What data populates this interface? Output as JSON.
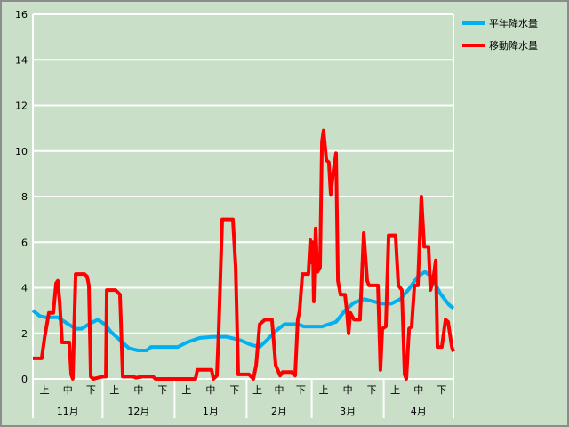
{
  "chart_data": {
    "type": "line",
    "title": "",
    "xlabel": "",
    "ylabel": "",
    "ylim": [
      0,
      16
    ],
    "yticks": [
      0,
      2,
      4,
      6,
      8,
      10,
      12,
      14,
      16
    ],
    "grid": true,
    "legend_position": "top-right",
    "x_range_days": [
      0,
      181
    ],
    "months": [
      {
        "label": "11月",
        "days": 30
      },
      {
        "label": "12月",
        "days": 31
      },
      {
        "label": "1月",
        "days": 31
      },
      {
        "label": "2月",
        "days": 28
      },
      {
        "label": "3月",
        "days": 31
      },
      {
        "label": "4月",
        "days": 30
      }
    ],
    "dekads": [
      "上",
      "中",
      "下"
    ],
    "series": [
      {
        "name": "平年降水量",
        "color": "#00b0f0",
        "points": [
          [
            0,
            3.0
          ],
          [
            3.1,
            2.75
          ],
          [
            5.7,
            2.7
          ],
          [
            10.7,
            2.7
          ],
          [
            14.5,
            2.45
          ],
          [
            18.4,
            2.2
          ],
          [
            21.0,
            2.2
          ],
          [
            24.1,
            2.4
          ],
          [
            27.9,
            2.6
          ],
          [
            31.0,
            2.4
          ],
          [
            33.7,
            2.05
          ],
          [
            37.5,
            1.7
          ],
          [
            41.3,
            1.35
          ],
          [
            45.2,
            1.25
          ],
          [
            49.0,
            1.25
          ],
          [
            50.9,
            1.4
          ],
          [
            62.4,
            1.4
          ],
          [
            66.2,
            1.6
          ],
          [
            71.9,
            1.8
          ],
          [
            77.7,
            1.85
          ],
          [
            83.4,
            1.85
          ],
          [
            89.2,
            1.7
          ],
          [
            93.8,
            1.5
          ],
          [
            97.6,
            1.4
          ],
          [
            100.7,
            1.7
          ],
          [
            104.5,
            2.1
          ],
          [
            108.3,
            2.4
          ],
          [
            114.0,
            2.4
          ],
          [
            116.7,
            2.3
          ],
          [
            124.4,
            2.3
          ],
          [
            127.4,
            2.4
          ],
          [
            130.5,
            2.5
          ],
          [
            134.3,
            3.0
          ],
          [
            138.2,
            3.35
          ],
          [
            142.7,
            3.5
          ],
          [
            146.6,
            3.4
          ],
          [
            150.4,
            3.3
          ],
          [
            154.2,
            3.3
          ],
          [
            158.1,
            3.5
          ],
          [
            161.9,
            3.95
          ],
          [
            165.7,
            4.5
          ],
          [
            168.8,
            4.7
          ],
          [
            171.5,
            4.5
          ],
          [
            175.3,
            3.75
          ],
          [
            179.1,
            3.25
          ],
          [
            181,
            3.1
          ]
        ]
      },
      {
        "name": "移動降水量",
        "color": "#ff0000",
        "points": [
          [
            0,
            0.9
          ],
          [
            3.8,
            0.9
          ],
          [
            5.0,
            1.8
          ],
          [
            6.9,
            2.9
          ],
          [
            8.8,
            2.9
          ],
          [
            10.0,
            4.2
          ],
          [
            10.7,
            4.3
          ],
          [
            11.5,
            3.4
          ],
          [
            12.6,
            1.6
          ],
          [
            15.7,
            1.6
          ],
          [
            16.5,
            0.2
          ],
          [
            17.2,
            0
          ],
          [
            18.4,
            4.6
          ],
          [
            22.2,
            4.6
          ],
          [
            23.3,
            4.5
          ],
          [
            24.1,
            4.1
          ],
          [
            24.9,
            0.1
          ],
          [
            26.0,
            0
          ],
          [
            29.9,
            0.1
          ],
          [
            31.4,
            0.1
          ],
          [
            31.8,
            3.9
          ],
          [
            35.6,
            3.9
          ],
          [
            37.5,
            3.7
          ],
          [
            38.7,
            0.1
          ],
          [
            43.2,
            0.1
          ],
          [
            44.4,
            0.05
          ],
          [
            47.1,
            0.1
          ],
          [
            51.7,
            0.1
          ],
          [
            52.8,
            0
          ],
          [
            70.0,
            0
          ],
          [
            70.8,
            0.4
          ],
          [
            76.9,
            0.4
          ],
          [
            77.7,
            0
          ],
          [
            79.2,
            0.15
          ],
          [
            80.0,
            2.2
          ],
          [
            81.5,
            7.0
          ],
          [
            86.1,
            7.0
          ],
          [
            87.3,
            4.9
          ],
          [
            88.4,
            0.2
          ],
          [
            93.0,
            0.2
          ],
          [
            94.9,
            0
          ],
          [
            96.1,
            0.6
          ],
          [
            97.6,
            2.4
          ],
          [
            99.9,
            2.6
          ],
          [
            102.9,
            2.6
          ],
          [
            104.5,
            0.6
          ],
          [
            106.4,
            0.15
          ],
          [
            107.5,
            0.3
          ],
          [
            111.4,
            0.3
          ],
          [
            112.9,
            0.15
          ],
          [
            114.0,
            2.6
          ],
          [
            114.8,
            3.0
          ],
          [
            116.0,
            4.6
          ],
          [
            118.6,
            4.6
          ],
          [
            119.4,
            6.1
          ],
          [
            120.2,
            5.1
          ],
          [
            120.5,
            6.0
          ],
          [
            120.9,
            3.4
          ],
          [
            121.7,
            6.6
          ],
          [
            122.5,
            4.7
          ],
          [
            123.6,
            4.9
          ],
          [
            124.4,
            10.4
          ],
          [
            125.1,
            10.9
          ],
          [
            126.3,
            9.6
          ],
          [
            127.4,
            9.5
          ],
          [
            128.2,
            8.1
          ],
          [
            129.3,
            9.1
          ],
          [
            130.5,
            9.9
          ],
          [
            131.3,
            4.3
          ],
          [
            132.4,
            3.7
          ],
          [
            134.3,
            3.7
          ],
          [
            135.1,
            3.0
          ],
          [
            135.9,
            2.0
          ],
          [
            136.6,
            2.9
          ],
          [
            138.2,
            2.6
          ],
          [
            140.8,
            2.6
          ],
          [
            142.4,
            6.4
          ],
          [
            143.9,
            4.3
          ],
          [
            144.7,
            4.1
          ],
          [
            148.5,
            4.1
          ],
          [
            149.6,
            0.4
          ],
          [
            150.4,
            2.2
          ],
          [
            151.9,
            2.3
          ],
          [
            153.1,
            6.3
          ],
          [
            156.1,
            6.3
          ],
          [
            157.3,
            4.1
          ],
          [
            158.8,
            3.9
          ],
          [
            160.0,
            0.2
          ],
          [
            160.7,
            0
          ],
          [
            161.9,
            2.2
          ],
          [
            163.0,
            2.3
          ],
          [
            164.2,
            4.1
          ],
          [
            165.7,
            4.1
          ],
          [
            167.2,
            8.0
          ],
          [
            168.4,
            5.8
          ],
          [
            170.3,
            5.8
          ],
          [
            171.1,
            3.9
          ],
          [
            172.2,
            4.3
          ],
          [
            173.4,
            5.2
          ],
          [
            174.1,
            1.4
          ],
          [
            176.0,
            1.4
          ],
          [
            177.6,
            2.6
          ],
          [
            178.7,
            2.5
          ],
          [
            180.3,
            1.4
          ],
          [
            181,
            1.2
          ]
        ]
      }
    ]
  }
}
